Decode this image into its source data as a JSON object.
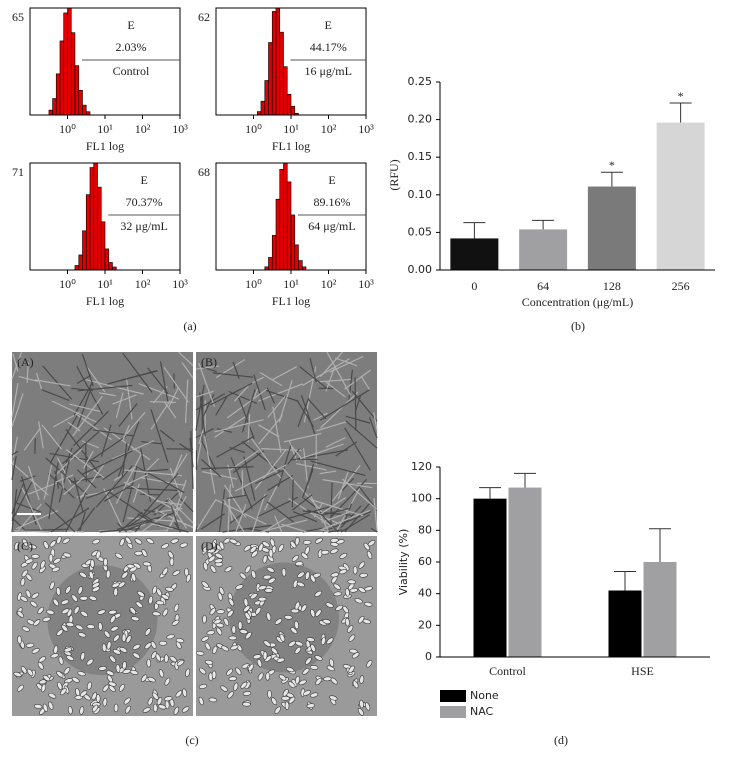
{
  "chart_data": [
    {
      "type": "histogram",
      "xscale": "log",
      "xlim": [
        0.1,
        1000
      ],
      "ylim": [
        0,
        65
      ],
      "yticks": [
        65
      ],
      "xticks": [
        {
          "value": 1,
          "label": "10⁰"
        },
        {
          "value": 10,
          "label": "10¹"
        },
        {
          "value": 100,
          "label": "10²"
        },
        {
          "value": 1000,
          "label": "10³"
        }
      ],
      "xlabel": "FL1 log",
      "gate_label": "E",
      "percent": "2.03%",
      "sample": "Control",
      "color": "#e00000",
      "bins": [
        0.32,
        0.4,
        0.5,
        0.63,
        0.79,
        1,
        1.26,
        1.58,
        2,
        2.51,
        3.16,
        3.98
      ],
      "counts": [
        3,
        10,
        25,
        45,
        62,
        65,
        50,
        30,
        15,
        6,
        2
      ]
    },
    {
      "type": "histogram",
      "xscale": "log",
      "xlim": [
        0.1,
        1000
      ],
      "ylim": [
        0,
        62
      ],
      "yticks": [
        62
      ],
      "xticks": [
        {
          "value": 1,
          "label": "10⁰"
        },
        {
          "value": 10,
          "label": "10¹"
        },
        {
          "value": 100,
          "label": "10²"
        },
        {
          "value": 1000,
          "label": "10³"
        }
      ],
      "xlabel": "FL1 log",
      "gate_label": "E",
      "percent": "44.17%",
      "sample": "16 μg/mL",
      "color": "#e00000",
      "bins": [
        1.26,
        1.58,
        2,
        2.51,
        3.16,
        3.98,
        5.01,
        6.31,
        7.94,
        10,
        12.6,
        15.8
      ],
      "counts": [
        2,
        8,
        20,
        42,
        60,
        62,
        48,
        28,
        12,
        5,
        1
      ]
    },
    {
      "type": "histogram",
      "xscale": "log",
      "xlim": [
        0.1,
        1000
      ],
      "ylim": [
        0,
        71
      ],
      "yticks": [
        71
      ],
      "xticks": [
        {
          "value": 1,
          "label": "10⁰"
        },
        {
          "value": 10,
          "label": "10¹"
        },
        {
          "value": 100,
          "label": "10²"
        },
        {
          "value": 1000,
          "label": "10³"
        }
      ],
      "xlabel": "FL1 log",
      "gate_label": "E",
      "percent": "70.37%",
      "sample": "32 μg/mL",
      "color": "#e00000",
      "bins": [
        1.58,
        2,
        2.51,
        3.16,
        3.98,
        5.01,
        6.31,
        7.94,
        10,
        12.6,
        15.8,
        20
      ],
      "counts": [
        3,
        10,
        26,
        50,
        68,
        71,
        55,
        32,
        14,
        5,
        2
      ]
    },
    {
      "type": "histogram",
      "xscale": "log",
      "xlim": [
        0.1,
        1000
      ],
      "ylim": [
        0,
        68
      ],
      "yticks": [
        68
      ],
      "xticks": [
        {
          "value": 1,
          "label": "10⁰"
        },
        {
          "value": 10,
          "label": "10¹"
        },
        {
          "value": 100,
          "label": "10²"
        },
        {
          "value": 1000,
          "label": "10³"
        }
      ],
      "xlabel": "FL1 log",
      "gate_label": "E",
      "percent": "89.16%",
      "sample": "64 μg/mL",
      "color": "#e00000",
      "bins": [
        2,
        2.51,
        3.16,
        3.98,
        5.01,
        6.31,
        7.94,
        10,
        12.6,
        15.8,
        20,
        25.1
      ],
      "counts": [
        2,
        8,
        22,
        45,
        64,
        68,
        56,
        35,
        16,
        6,
        2
      ]
    },
    {
      "type": "bar",
      "ylabel": "(RFU)",
      "xlabel": "Concentration (μg/mL)",
      "categories": [
        "0",
        "64",
        "128",
        "256"
      ],
      "values": [
        0.042,
        0.054,
        0.111,
        0.196
      ],
      "errors": [
        0.021,
        0.012,
        0.019,
        0.026
      ],
      "colors": [
        "#111111",
        "#a0a0a3",
        "#7a7a7a",
        "#d6d6d6"
      ],
      "annotations": [
        null,
        null,
        "*",
        "*"
      ],
      "ylim": [
        0,
        0.25
      ],
      "yticks": [
        {
          "value": 0,
          "label": "0.00"
        },
        {
          "value": 0.05,
          "label": "0.05"
        },
        {
          "value": 0.1,
          "label": "0.10"
        },
        {
          "value": 0.15,
          "label": "0.15"
        },
        {
          "value": 0.2,
          "label": "0.20"
        },
        {
          "value": 0.25,
          "label": "0.25"
        }
      ]
    },
    {
      "type": "grouped_bar",
      "ylabel": "Viability (%)",
      "categories": [
        "Control",
        "HSE"
      ],
      "series": [
        {
          "name": "None",
          "color": "#000000",
          "values": [
            100,
            42
          ],
          "errors": [
            7,
            12
          ]
        },
        {
          "name": "NAC",
          "color": "#a0a0a3",
          "values": [
            107,
            60
          ],
          "errors": [
            9,
            21
          ]
        }
      ],
      "ylim": [
        0,
        120
      ],
      "yticks": [
        0,
        20,
        40,
        60,
        80,
        100,
        120
      ],
      "legend": "bottom-left"
    }
  ],
  "micrographs": [
    "(A)",
    "(B)",
    "(C)",
    "(D)"
  ],
  "panel_labels": [
    "(a)",
    "(b)",
    "(c)",
    "(d)"
  ]
}
